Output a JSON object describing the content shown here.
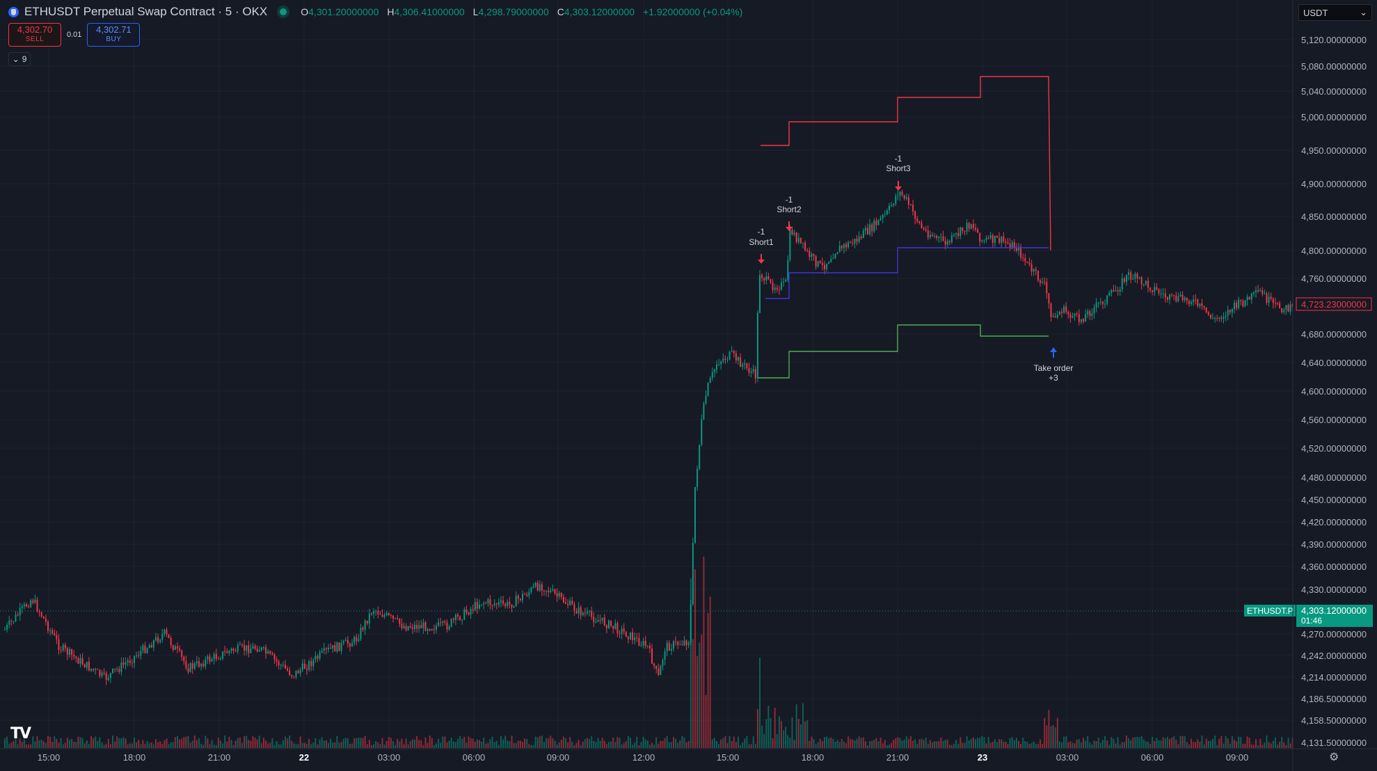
{
  "header": {
    "title": "ETHUSDT Perpetual Swap Contract · 5 · OKX",
    "ohlc": [
      {
        "key": "O",
        "value": "4,301.20000000"
      },
      {
        "key": "H",
        "value": "4,306.41000000"
      },
      {
        "key": "L",
        "value": "4,298.79000000"
      },
      {
        "key": "C",
        "value": "4,303.12000000"
      }
    ],
    "change": "+1.92000000 (+0.04%)",
    "status_color": "#089981"
  },
  "trade_panel": {
    "sell_price": "4,302.70",
    "sell_label": "SELL",
    "quantity": "0.01",
    "buy_price": "4,302.71",
    "buy_label": "BUY"
  },
  "indicators_toggle": {
    "count": "9"
  },
  "currency_select": {
    "value": "USDT",
    "options": [
      "USDT"
    ]
  },
  "price_axis": {
    "labels": [
      "5,120.00000000",
      "5,080.00000000",
      "5,040.00000000",
      "5,000.00000000",
      "4,950.00000000",
      "4,900.00000000",
      "4,850.00000000",
      "4,800.00000000",
      "4,760.00000000",
      "4,680.00000000",
      "4,640.00000000",
      "4,600.00000000",
      "4,560.00000000",
      "4,520.00000000",
      "4,480.00000000",
      "4,450.00000000",
      "4,420.00000000",
      "4,390.00000000",
      "4,360.00000000",
      "4,330.00000000",
      "4,270.00000000",
      "4,242.00000000",
      "4,214.00000000",
      "4,186.50000000",
      "4,158.50000000",
      "4,131.50000000"
    ],
    "strategy_price_badge": "4,723.23000000",
    "symbol_tag": "ETHUSDT.P",
    "last_price_badge": "4,303.12000000",
    "countdown": "01:46"
  },
  "time_axis": {
    "labels": [
      "15:00",
      "18:00",
      "21:00",
      "22",
      "03:00",
      "06:00",
      "09:00",
      "12:00",
      "15:00",
      "18:00",
      "21:00",
      "23",
      "03:00",
      "06:00",
      "09:00"
    ]
  },
  "trade_markers": [
    {
      "qty": "-1",
      "label": "Short1"
    },
    {
      "qty": "-1",
      "label": "Short2"
    },
    {
      "qty": "-1",
      "label": "Short3"
    },
    {
      "label": "Take order",
      "qty": "+3"
    }
  ],
  "colors": {
    "background": "#161a25",
    "up": "#089981",
    "down": "#f23645",
    "stop_line": "#f23645",
    "entry_line": "#3f36d6",
    "target_line": "#4caf50",
    "buy_arrow": "#2962ff",
    "grid": "#1f2330"
  },
  "branding": {
    "logo_icon": "tradingview-logo-icon",
    "settings_icon": "gear-icon"
  }
}
